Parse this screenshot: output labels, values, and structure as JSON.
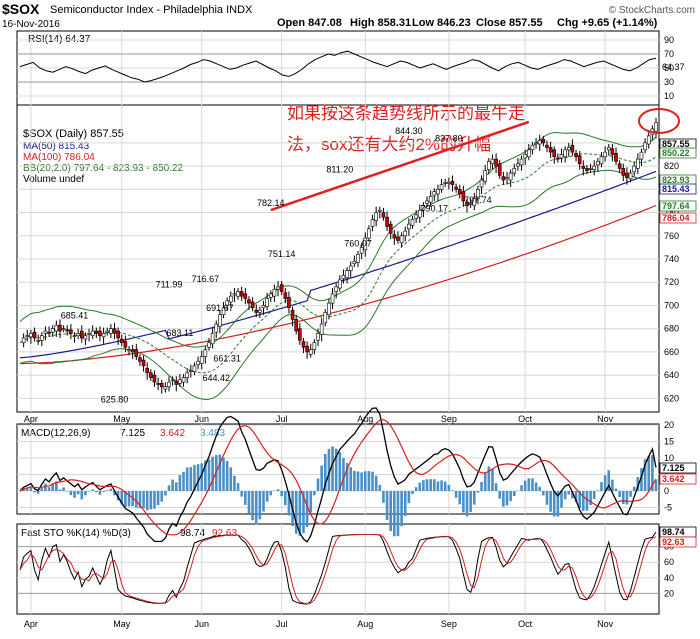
{
  "header": {
    "symbol": "$SOX",
    "name": "Semiconductor Index - Philadelphia INDX",
    "brand": "© StockCharts.com",
    "date": "16-Nov-2016",
    "open": "Open 847.08",
    "high": "High 858.31",
    "low": "Low 846.23",
    "close": "Close 857.55",
    "change": "Chg +9.65 (+1.14%)"
  },
  "rsi_panel": {
    "label": "RSI(14) 64.37",
    "current": "64.37",
    "ticks": [
      90,
      70,
      50,
      30,
      10
    ],
    "values": [
      52,
      55,
      58,
      50,
      46,
      44,
      48,
      52,
      49,
      45,
      42,
      47,
      50,
      53,
      48,
      44,
      40,
      36,
      34,
      30,
      32,
      35,
      38,
      42,
      46,
      50,
      55,
      58,
      62,
      60,
      56,
      52,
      48,
      50,
      54,
      57,
      60,
      55,
      50,
      46,
      40,
      38,
      42,
      48,
      56,
      62,
      66,
      70,
      68,
      72,
      74,
      70,
      66,
      62,
      58,
      55,
      52,
      56,
      60,
      58,
      54,
      50,
      53,
      56,
      52,
      48,
      52,
      55,
      58,
      62,
      60,
      55,
      50,
      46,
      52,
      56,
      58,
      54,
      50,
      48,
      52,
      55,
      58,
      62,
      60,
      56,
      52,
      55,
      58,
      60,
      56,
      52,
      48,
      46,
      50,
      56,
      62,
      64
    ]
  },
  "annotation": {
    "line1": "如果按这条趋势线所示的最牛走",
    "line2": "法，sox还有大约2%的升幅",
    "color": "#e02020"
  },
  "legend": {
    "main": "$SOX (Daily) 857.55",
    "ma50": "MA(50) 815.43",
    "ma100": "MA(100) 786.04",
    "bb": "BB(20,2.0) 797.64 - 823.93 - 850.22",
    "volume": "Volume undef"
  },
  "price_labels": [
    {
      "text": "685.41",
      "x": 15,
      "y": 685.41,
      "pos": "above"
    },
    {
      "text": "625.80",
      "x": 26,
      "y": 625.8,
      "pos": "below"
    },
    {
      "text": "711.99",
      "x": 41,
      "y": 711.99,
      "pos": "above"
    },
    {
      "text": "683.11",
      "x": 44,
      "y": 683.11,
      "pos": "below"
    },
    {
      "text": "716.67",
      "x": 51,
      "y": 716.67,
      "pos": "above"
    },
    {
      "text": "691.67",
      "x": 55,
      "y": 691.67,
      "pos": "above"
    },
    {
      "text": "644.42",
      "x": 54,
      "y": 644.42,
      "pos": "below"
    },
    {
      "text": "661.31",
      "x": 57,
      "y": 661.31,
      "pos": "below"
    },
    {
      "text": "782.14",
      "x": 69,
      "y": 782.14,
      "pos": "above"
    },
    {
      "text": "751.14",
      "x": 72,
      "y": 751.14,
      "pos": "below"
    },
    {
      "text": "811.20",
      "x": 88,
      "y": 811.2,
      "pos": "above"
    },
    {
      "text": "760.07",
      "x": 93,
      "y": 760.07,
      "pos": "below"
    },
    {
      "text": "844.30",
      "x": 107,
      "y": 844.3,
      "pos": "above"
    },
    {
      "text": "837.80",
      "x": 118,
      "y": 837.8,
      "pos": "above"
    },
    {
      "text": "790.17",
      "x": 114,
      "y": 790.17,
      "pos": "below"
    },
    {
      "text": "797.74",
      "x": 126,
      "y": 797.74,
      "pos": "below"
    }
  ],
  "right_labels": {
    "close": "857.55",
    "bb_upper": "850.22",
    "bb_mid": "823.93",
    "ma50": "815.43",
    "bb_lower": "797.64",
    "ma100": "786.04"
  },
  "price_ticks": [
    620,
    640,
    660,
    680,
    700,
    720,
    740,
    760,
    780,
    800,
    820,
    840
  ],
  "macd_panel": {
    "label": "MACD(12,26,9)",
    "v1": "7.125",
    "v2": "3.642",
    "v3": "3.483",
    "ticks": [
      20,
      15,
      10,
      5,
      0,
      -5
    ],
    "right_macd": "7.125",
    "right_signal": "3.642"
  },
  "sto_panel": {
    "label": "Fast STO %K(14) %D(3)",
    "k": "98.74",
    "d": "92.63",
    "ticks": [
      80,
      60,
      40,
      20
    ],
    "right_k": "98.74",
    "right_d": "92.63"
  },
  "months": [
    "Apr",
    "May",
    "Jun",
    "Jul",
    "Aug",
    "Sep",
    "Oct",
    "Nov"
  ],
  "colors": {
    "up": "#ffffff",
    "down": "#cc0000",
    "candle_line": "#000000",
    "ma50": "#1a1a8c",
    "ma100": "#d42020",
    "bb": "#2a7a2a",
    "bb_mid": "#2a7a2a",
    "macd": "#000000",
    "signal": "#d42020",
    "hist": "#4a90c8",
    "grid": "#d8d8d8",
    "trend": "#e02020"
  },
  "chart_data": {
    "type": "candlestick",
    "title": "$SOX Semiconductor Index - Philadelphia INDX",
    "x_range": [
      "Apr 2016",
      "16-Nov-2016"
    ],
    "ylim": [
      610,
      870
    ],
    "close_series": [
      668,
      672,
      674,
      676,
      672,
      670,
      674,
      678,
      676,
      680,
      683,
      678,
      680,
      678,
      676,
      674,
      676,
      672,
      674,
      676,
      678,
      676,
      674,
      676,
      678,
      680,
      676,
      672,
      668,
      664,
      662,
      660,
      656,
      652,
      648,
      642,
      638,
      634,
      632,
      630,
      630,
      634,
      636,
      632,
      636,
      638,
      642,
      644,
      648,
      652,
      656,
      662,
      668,
      676,
      684,
      692,
      698,
      704,
      708,
      710,
      712,
      708,
      706,
      702,
      698,
      694,
      696,
      700,
      706,
      710,
      714,
      716,
      712,
      706,
      698,
      688,
      678,
      670,
      664,
      660,
      662,
      668,
      676,
      684,
      694,
      702,
      710,
      716,
      722,
      726,
      730,
      734,
      738,
      744,
      750,
      758,
      766,
      774,
      780,
      782,
      776,
      768,
      762,
      758,
      756,
      760,
      764,
      770,
      774,
      778,
      782,
      786,
      790,
      794,
      798,
      800,
      804,
      806,
      806,
      804,
      800,
      796,
      790,
      786,
      788,
      792,
      800,
      808,
      816,
      824,
      826,
      820,
      812,
      808,
      810,
      814,
      818,
      822,
      826,
      830,
      834,
      838,
      840,
      842,
      840,
      836,
      832,
      828,
      826,
      830,
      834,
      836,
      832,
      828,
      822,
      818,
      816,
      818,
      820,
      824,
      828,
      832,
      836,
      830,
      824,
      818,
      812,
      810,
      814,
      820,
      826,
      832,
      840,
      846,
      852,
      857.55
    ],
    "ma50_end": 815.43,
    "ma100_end": 786.04,
    "bb_end": {
      "lower": 797.64,
      "mid": 823.93,
      "upper": 850.22
    },
    "trendline": {
      "from": {
        "x": 69,
        "y": 782.14
      },
      "to": {
        "x": 140,
        "y": 858
      }
    },
    "rsi_last": 64.37,
    "macd_last": {
      "macd": 7.125,
      "signal": 3.642,
      "hist": 3.483
    },
    "sto_last": {
      "k": 98.74,
      "d": 92.63
    }
  }
}
